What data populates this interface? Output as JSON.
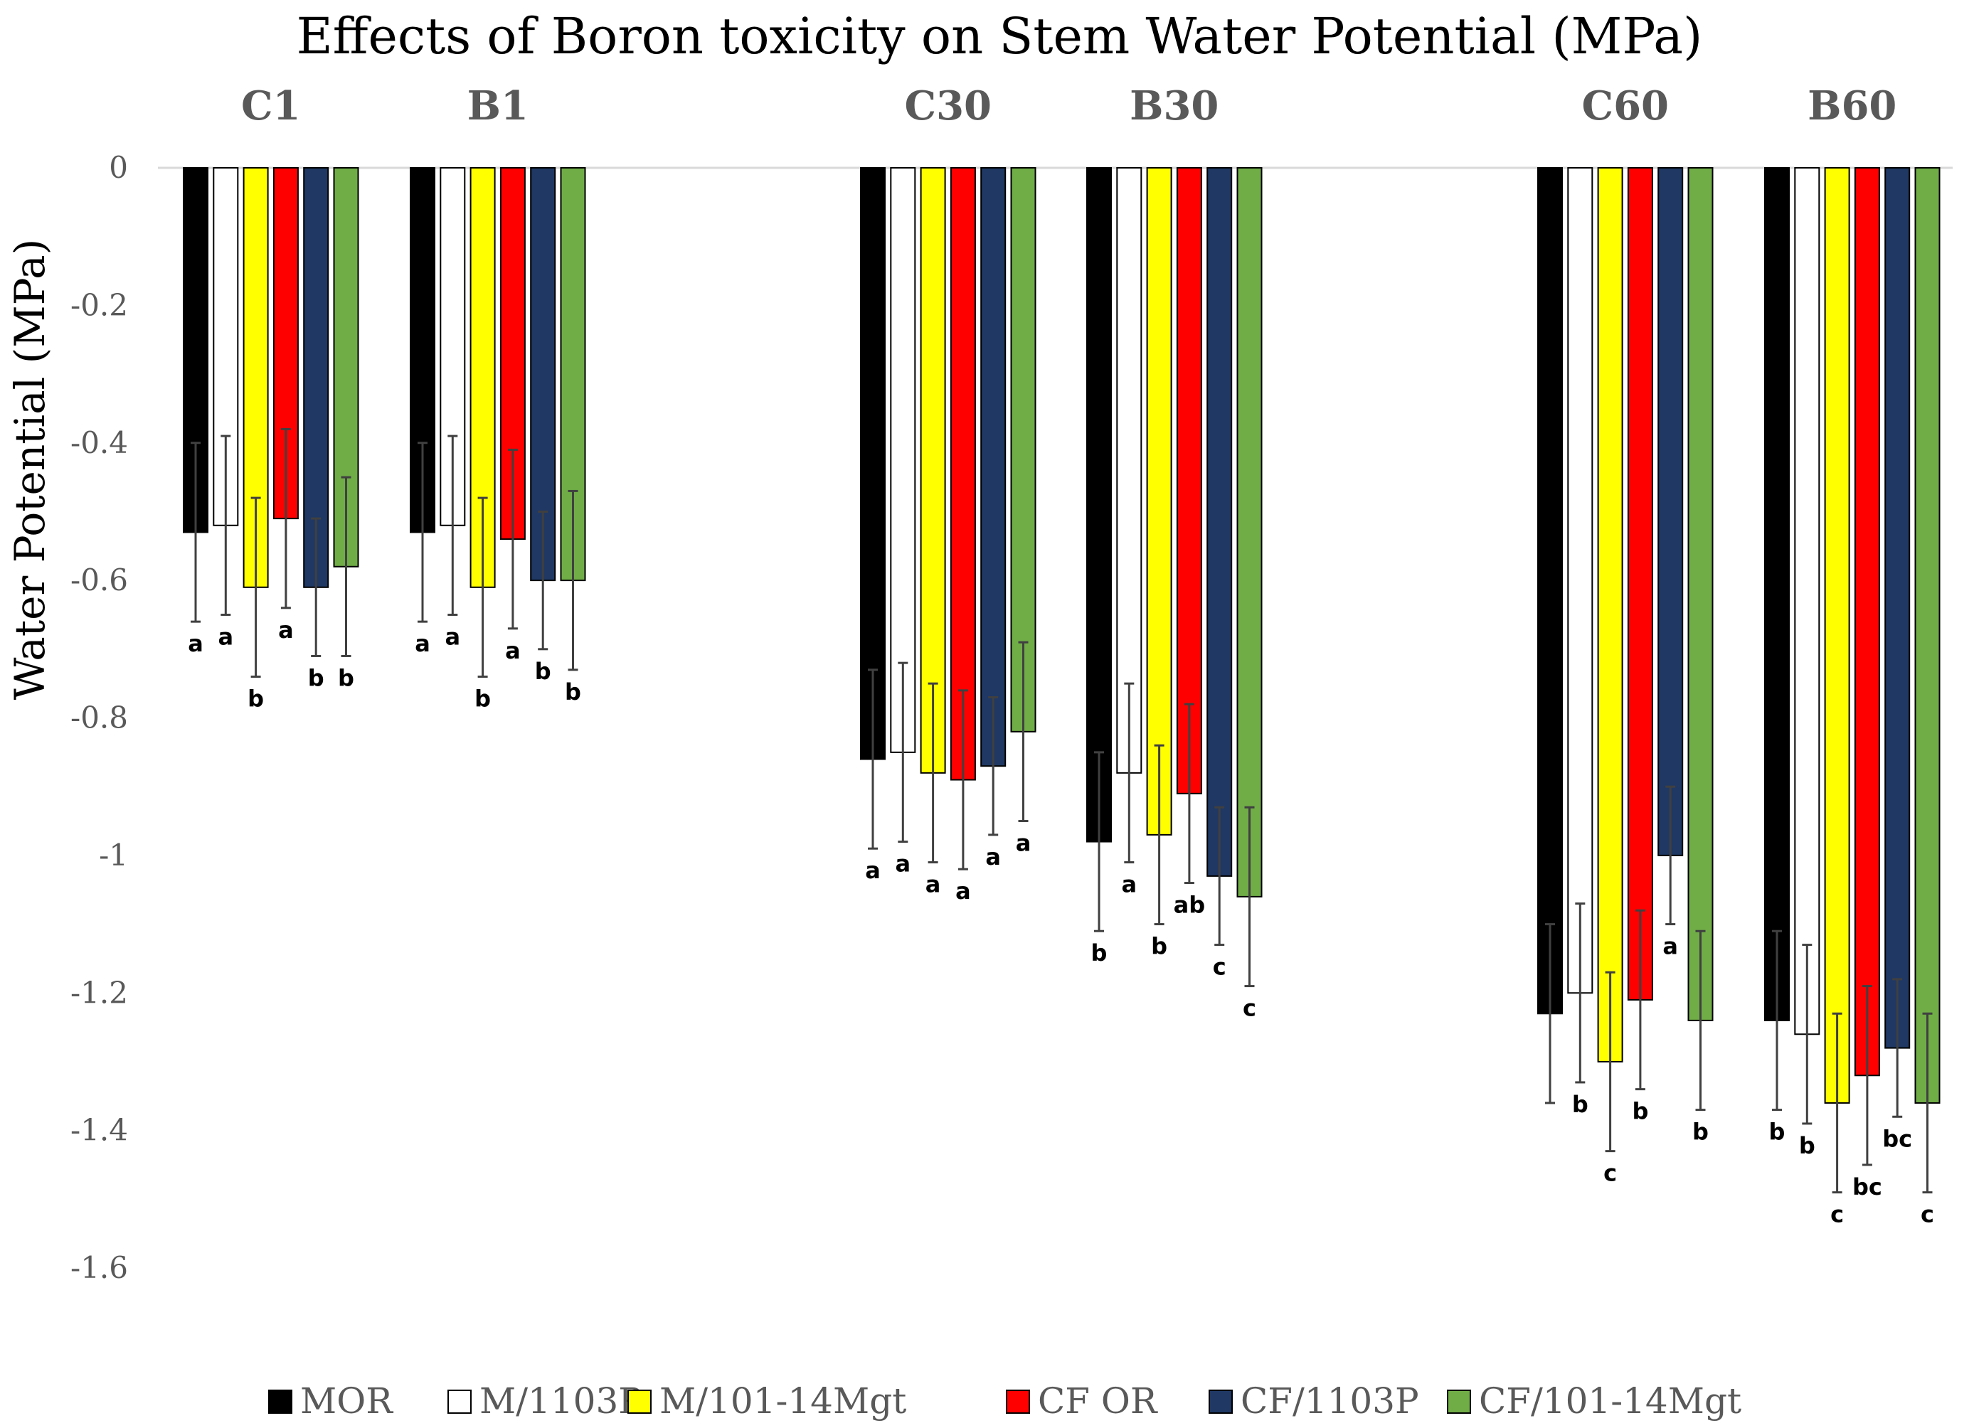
{
  "chart_data": {
    "type": "bar",
    "title": "Effects of Boron toxicity on Stem Water Potential  (MPa)",
    "xlabel": "",
    "ylabel": "Water Potential (MPa)",
    "ylim": [
      -1.6,
      0
    ],
    "yticks": [
      "0",
      "-0.2",
      "-0.4",
      "-0.6",
      "-0.8",
      "-1",
      "-1.2",
      "-1.4",
      "-1.6"
    ],
    "ytick_values": [
      0,
      -0.2,
      -0.4,
      -0.6,
      -0.8,
      -1,
      -1.2,
      -1.4,
      -1.6
    ],
    "grid": false,
    "legend_position": "bottom",
    "categories": [
      "C1",
      "B1",
      "C30",
      "B30",
      "C60",
      "B60"
    ],
    "series": [
      {
        "name": "MOR",
        "color": "#000000",
        "values": [
          -0.53,
          -0.53,
          -0.86,
          -0.98,
          -1.23,
          -1.24
        ],
        "errors": [
          0.13,
          0.13,
          0.13,
          0.13,
          0.13,
          0.13
        ],
        "letters": [
          "a",
          "a",
          "a",
          "b",
          "",
          "b"
        ]
      },
      {
        "name": "M/1103P",
        "color": "#ffffff",
        "values": [
          -0.52,
          -0.52,
          -0.85,
          -0.88,
          -1.2,
          -1.26
        ],
        "errors": [
          0.13,
          0.13,
          0.13,
          0.13,
          0.13,
          0.13
        ],
        "letters": [
          "a",
          "a",
          "a",
          "a",
          "b",
          "b"
        ]
      },
      {
        "name": "M/101-14Mgt",
        "color": "#ffff00",
        "values": [
          -0.61,
          -0.61,
          -0.88,
          -0.97,
          -1.3,
          -1.36
        ],
        "errors": [
          0.13,
          0.13,
          0.13,
          0.13,
          0.13,
          0.13
        ],
        "letters": [
          "b",
          "b",
          "a",
          "b",
          "c",
          "c"
        ]
      },
      {
        "name": "CF OR",
        "color": "#ff0000",
        "values": [
          -0.51,
          -0.54,
          -0.89,
          -0.91,
          -1.21,
          -1.32
        ],
        "errors": [
          0.13,
          0.13,
          0.13,
          0.13,
          0.13,
          0.13
        ],
        "letters": [
          "a",
          "a",
          "a",
          "ab",
          "b",
          "bc"
        ]
      },
      {
        "name": "CF/1103P",
        "color": "#1f3864",
        "values": [
          -0.61,
          -0.6,
          -0.87,
          -1.03,
          -1.0,
          -1.28
        ],
        "errors": [
          0.1,
          0.1,
          0.1,
          0.1,
          0.1,
          0.1
        ],
        "letters": [
          "b",
          "b",
          "a",
          "c",
          "a",
          "bc"
        ]
      },
      {
        "name": "CF/101-14Mgt",
        "color": "#70ad47",
        "values": [
          -0.58,
          -0.6,
          -0.82,
          -1.06,
          -1.24,
          -1.36
        ],
        "errors": [
          0.13,
          0.13,
          0.13,
          0.13,
          0.13,
          0.13
        ],
        "letters": [
          "b",
          "b",
          "a",
          "c",
          "b",
          "c"
        ]
      }
    ]
  }
}
